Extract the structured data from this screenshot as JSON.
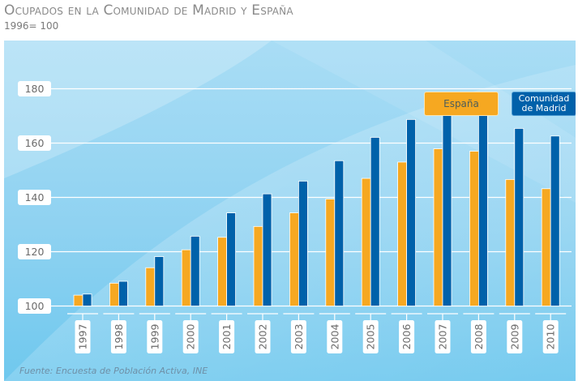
{
  "header": {
    "title": "Ocupados en la Comunidad de Madrid y España",
    "subtitle": "1996= 100"
  },
  "footer": {
    "source": "Fuente: Encuesta de Población Activa, INE"
  },
  "colors": {
    "espana": "#F6A821",
    "madrid": "#0061AA",
    "gridline": "#ffffff",
    "label_text": "#6b6b6b"
  },
  "chart_data": {
    "type": "bar",
    "title": "Ocupados en la Comunidad de Madrid y España",
    "subtitle": "1996= 100",
    "xlabel": "",
    "ylabel": "",
    "categories": [
      "1997",
      "1998",
      "1999",
      "2000",
      "2001",
      "2002",
      "2003",
      "2004",
      "2005",
      "2006",
      "2007",
      "2008",
      "2009",
      "2010"
    ],
    "series": [
      {
        "name": "España",
        "color": "#F6A821",
        "values": [
          104.0,
          108.4,
          114.1,
          120.7,
          125.3,
          129.3,
          134.3,
          139.4,
          147.0,
          153.0,
          157.9,
          157.0,
          146.6,
          143.2
        ]
      },
      {
        "name": "Comunidad de Madrid",
        "color": "#0061AA",
        "values": [
          104.4,
          109.1,
          118.2,
          125.7,
          134.3,
          141.3,
          146.0,
          153.5,
          162.1,
          168.7,
          172.9,
          173.4,
          165.4,
          162.6
        ]
      }
    ],
    "yticks": [
      100,
      120,
      140,
      160,
      180
    ],
    "ylim": [
      100,
      180
    ],
    "grid": true,
    "legend": {
      "position": "top-right",
      "entries": [
        "España",
        "Comunidad de Madrid"
      ]
    },
    "source": "Fuente: Encuesta de Población Activa, INE"
  }
}
